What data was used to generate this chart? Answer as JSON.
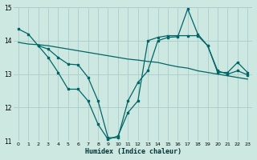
{
  "xlabel": "Humidex (Indice chaleur)",
  "ylabel": "",
  "xlim": [
    -0.5,
    23.5
  ],
  "ylim": [
    11,
    15
  ],
  "yticks": [
    11,
    12,
    13,
    14,
    15
  ],
  "xticks": [
    0,
    1,
    2,
    3,
    4,
    5,
    6,
    7,
    8,
    9,
    10,
    11,
    12,
    13,
    14,
    15,
    16,
    17,
    18,
    19,
    20,
    21,
    22,
    23
  ],
  "bg_color": "#cce8e0",
  "grid_color": "#aacccc",
  "line_color": "#006666",
  "line1_x": [
    0,
    1,
    2,
    3,
    4,
    5,
    6,
    7,
    8,
    9,
    10,
    11,
    12,
    13,
    14,
    15,
    16,
    17,
    18,
    19,
    20,
    21,
    22,
    23
  ],
  "line1_y": [
    14.35,
    14.2,
    13.85,
    13.5,
    13.05,
    12.55,
    12.55,
    12.2,
    11.5,
    11.05,
    11.15,
    11.85,
    12.2,
    14.0,
    14.1,
    14.15,
    14.15,
    14.15,
    14.15,
    13.85,
    13.05,
    13.05,
    13.35,
    13.05
  ],
  "line2_x": [
    0,
    1,
    2,
    3,
    4,
    5,
    6,
    7,
    8,
    9,
    10,
    11,
    12,
    13,
    14,
    15,
    16,
    17,
    18,
    19,
    20,
    21,
    22,
    23
  ],
  "line2_y": [
    13.95,
    13.9,
    13.88,
    13.85,
    13.8,
    13.75,
    13.7,
    13.65,
    13.6,
    13.55,
    13.5,
    13.45,
    13.42,
    13.38,
    13.35,
    13.28,
    13.22,
    13.18,
    13.1,
    13.05,
    13.0,
    12.95,
    12.9,
    12.85
  ],
  "line3_x": [
    2,
    3,
    4,
    5,
    6,
    7,
    8,
    9,
    10,
    11,
    12,
    13,
    14,
    15,
    16,
    17,
    18,
    19,
    20,
    21,
    22,
    23
  ],
  "line3_y": [
    13.85,
    13.75,
    13.5,
    13.3,
    13.28,
    12.9,
    12.2,
    11.1,
    11.1,
    12.2,
    12.75,
    13.1,
    14.0,
    14.1,
    14.12,
    14.95,
    14.2,
    13.85,
    13.1,
    13.0,
    13.1,
    12.98
  ]
}
